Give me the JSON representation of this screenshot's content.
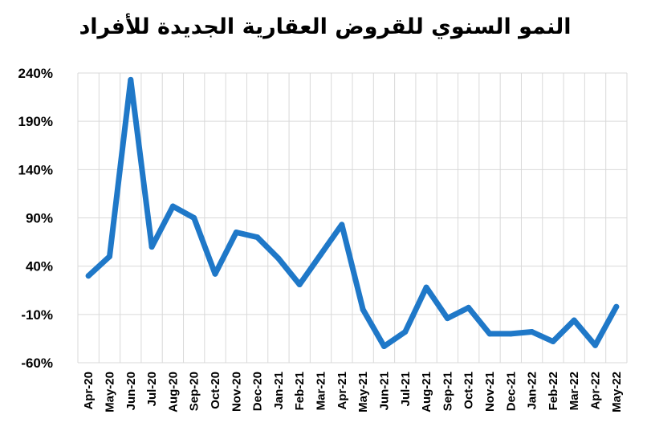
{
  "chart_data": {
    "type": "line",
    "title": "النمو السنوي للقروض العقارية الجديدة للأفراد",
    "xlabel": "",
    "ylabel": "",
    "categories": [
      "Apr-20",
      "May-20",
      "Jun-20",
      "Jul-20",
      "Aug-20",
      "Sep-20",
      "Oct-20",
      "Nov-20",
      "Dec-20",
      "Jan-21",
      "Feb-21",
      "Mar-21",
      "Apr-21",
      "May-21",
      "Jun-21",
      "Jul-21",
      "Aug-21",
      "Sep-21",
      "Oct-21",
      "Nov-21",
      "Dec-21",
      "Jan-22",
      "Feb-22",
      "Mar-22",
      "Apr-22",
      "May-22"
    ],
    "series": [
      {
        "name": "",
        "color": "#1f78c8",
        "values": [
          30,
          50,
          233,
          60,
          102,
          90,
          32,
          75,
          70,
          48,
          21,
          52,
          83,
          -5,
          -43,
          -28,
          18,
          -14,
          -3,
          -30,
          -30,
          -28,
          -38,
          -16,
          -42,
          -2
        ]
      }
    ],
    "yticks": [
      "240%",
      "190%",
      "140%",
      "90%",
      "40%",
      "-10%",
      "-60%"
    ],
    "ylim": [
      -60,
      240
    ],
    "ytick_step": 50,
    "grid": true,
    "legend": "none"
  }
}
